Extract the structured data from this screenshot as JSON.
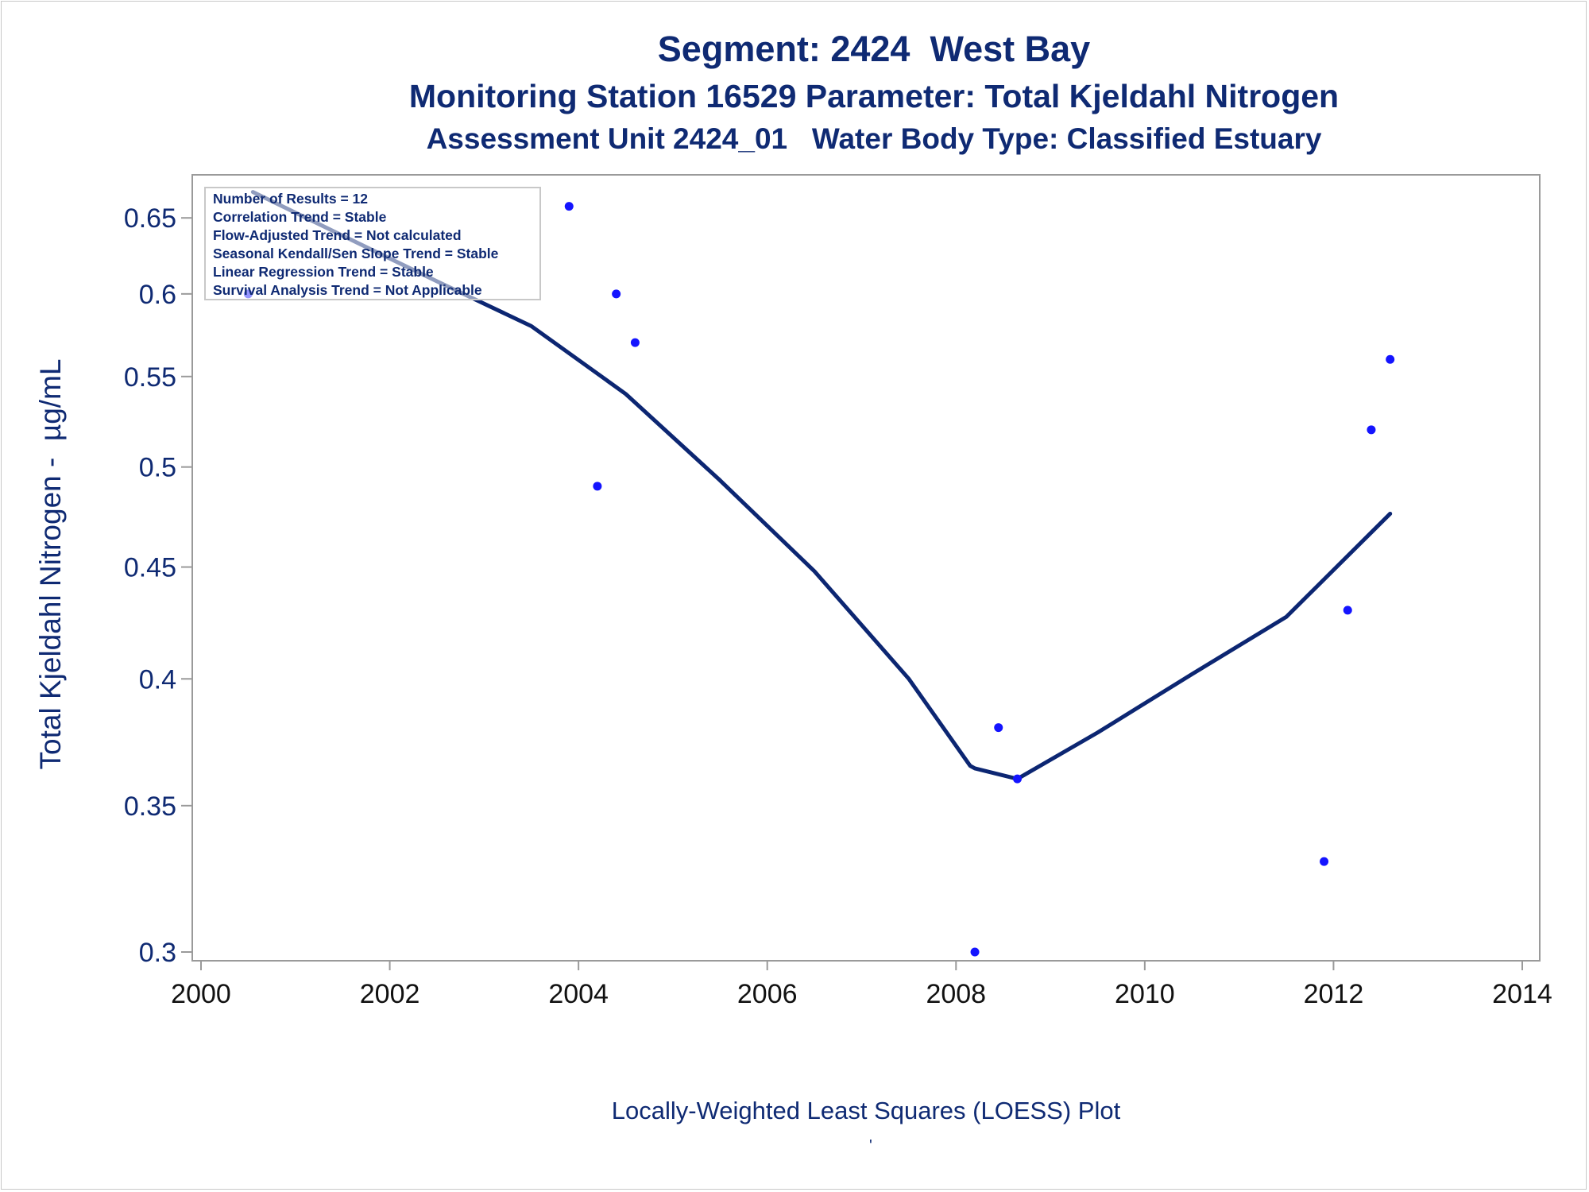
{
  "chart_data": {
    "type": "scatter",
    "title": "Segment: 2424  West Bay",
    "subtitles": [
      "Monitoring Station 16529 Parameter: Total Kjeldahl Nitrogen",
      "Assessment Unit 2424_01   Water Body Type: Classified Estuary"
    ],
    "xlabel": "",
    "ylabel": "Total Kjeldahl Nitrogen -  µg/mL",
    "footnote": "Locally-Weighted Least Squares (LOESS) Plot",
    "footnote_mark": "'",
    "y_scale": "log",
    "xlim": [
      2000,
      2014
    ],
    "ylim": [
      0.3,
      0.67
    ],
    "x_ticks": [
      2000,
      2002,
      2004,
      2006,
      2008,
      2010,
      2012,
      2014
    ],
    "y_ticks": [
      0.3,
      0.35,
      0.4,
      0.45,
      0.5,
      0.55,
      0.6,
      0.65
    ],
    "y_tick_labels": [
      "0.3",
      "0.35",
      "0.4",
      "0.45",
      "0.5",
      "0.55",
      "0.6",
      "0.65"
    ],
    "grid": false,
    "points": {
      "x": [
        2000.5,
        2003.9,
        2004.2,
        2004.4,
        2004.6,
        2008.2,
        2008.45,
        2008.65,
        2011.9,
        2012.15,
        2012.4,
        2012.6
      ],
      "y": [
        0.6,
        0.658,
        0.49,
        0.6,
        0.57,
        0.3,
        0.38,
        0.36,
        0.33,
        0.43,
        0.52,
        0.56
      ]
    },
    "loess_line": {
      "x": [
        2000.55,
        2001.5,
        2002.5,
        2003.5,
        2004.5,
        2005.5,
        2006.5,
        2007.5,
        2008.15,
        2008.2,
        2008.65,
        2009.5,
        2010.5,
        2011.5,
        2012.6
      ],
      "y": [
        0.668,
        0.638,
        0.608,
        0.58,
        0.54,
        0.493,
        0.448,
        0.4,
        0.365,
        0.364,
        0.36,
        0.378,
        0.402,
        0.427,
        0.476
      ]
    },
    "legend": {
      "placement": "top-left",
      "lines": [
        "Number of Results = 12",
        "Correlation Trend = Stable",
        "Flow-Adjusted Trend = Not calculated",
        "Seasonal Kendall/Sen Slope Trend = Stable",
        "Linear Regression Trend = Stable",
        "Survival Analysis Trend = Not Applicable"
      ]
    },
    "colors": {
      "points": "#1414ff",
      "line": "#0c2672",
      "text": "#0f2a73",
      "axis": "#9a9a9a"
    }
  }
}
